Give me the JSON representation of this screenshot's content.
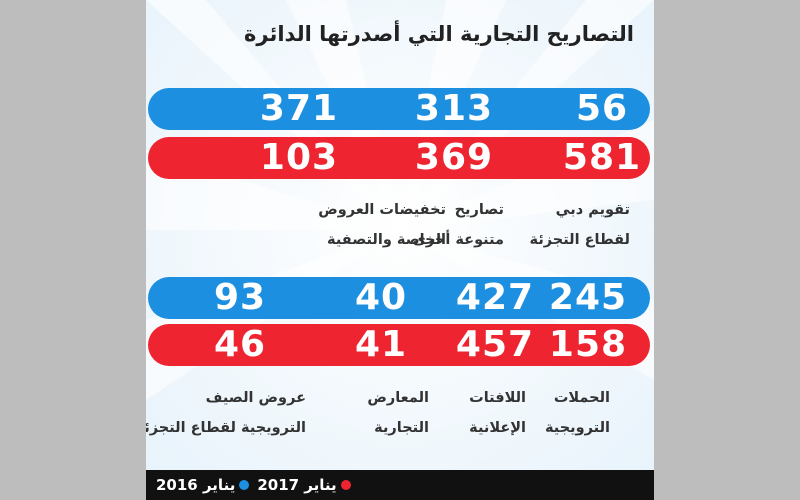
{
  "chart_data": {
    "type": "table",
    "title": "التصاريح التجارية التي أصدرتها الدائرة",
    "series": [
      {
        "name": "يناير 2016",
        "color": "#1d8fe0"
      },
      {
        "name": "يناير 2017",
        "color": "#ee2530"
      }
    ],
    "groups": [
      {
        "categories": [
          {
            "label": [
              "تقويم دبي",
              "لقطاع التجزئة"
            ],
            "values": [
              56,
              581
            ]
          },
          {
            "label": [
              "تصاريح",
              "متنوعة أخرى"
            ],
            "values": [
              313,
              369
            ]
          },
          {
            "label": [
              "تخفيضات العروض",
              "الخاصة والتصفية"
            ],
            "values": [
              371,
              103
            ]
          }
        ]
      },
      {
        "categories": [
          {
            "label": [
              "الحملات",
              "الترويجية"
            ],
            "values": [
              245,
              158
            ]
          },
          {
            "label": [
              "اللافتات",
              "الإعلانية"
            ],
            "values": [
              427,
              457
            ]
          },
          {
            "label": [
              "المعارض",
              "التجارية"
            ],
            "values": [
              40,
              41
            ]
          },
          {
            "label": [
              "عروض الصيف",
              "الترويجية لقطاع التجزئة"
            ],
            "values": [
              93,
              46
            ]
          }
        ]
      }
    ]
  },
  "colors": {
    "blue": "#1d8fe0",
    "red": "#ee2530",
    "footer": "#111111"
  }
}
